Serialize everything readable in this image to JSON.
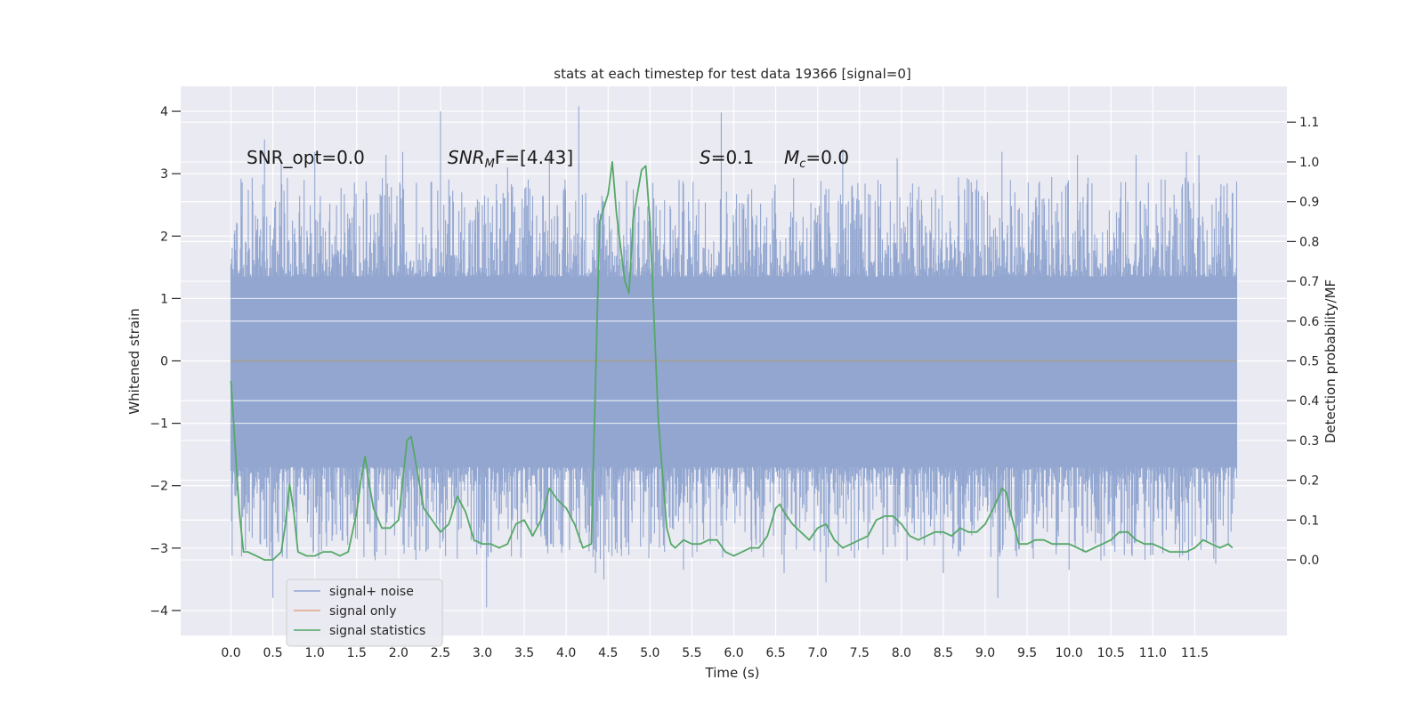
{
  "chart_data": {
    "type": "line",
    "title": "stats at each timestep for test data 19366 [signal=0]",
    "xlabel": "Time (s)",
    "ylabel_left": "Whitened strain",
    "ylabel_right": "Detection probability/MF",
    "xlim": [
      -0.6,
      12.6
    ],
    "ylim_left": [
      -4.4,
      4.4
    ],
    "ylim_right": [
      -0.19,
      1.19
    ],
    "x_ticks": [
      "0.0",
      "0.5",
      "1.0",
      "1.5",
      "2.0",
      "2.5",
      "3.0",
      "3.5",
      "4.0",
      "4.5",
      "5.0",
      "5.5",
      "6.0",
      "6.5",
      "7.0",
      "7.5",
      "8.0",
      "8.5",
      "9.0",
      "9.5",
      "10.0",
      "10.5",
      "11.0",
      "11.5"
    ],
    "y_left_ticks": [
      "4",
      "3",
      "2",
      "1",
      "0",
      "−1",
      "−2",
      "−3",
      "−4"
    ],
    "y_right_ticks": [
      "1.1",
      "1.0",
      "0.9",
      "0.8",
      "0.7",
      "0.6",
      "0.5",
      "0.4",
      "0.3",
      "0.2",
      "0.1",
      "0.0"
    ],
    "grid": true,
    "legend_position": "lower-left",
    "annotations": {
      "snr_opt": "SNR_opt=0.0",
      "snr_mf_main": "SNR",
      "snr_mf_sub": "M",
      "snr_mf_rest": "F=[4.43]",
      "s_main": "S",
      "s_rest": "=0.1",
      "mc_main": "M",
      "mc_sub": "c",
      "mc_rest": "=0.0"
    },
    "series": [
      {
        "name": "signal+ noise",
        "color": "#92a6d0",
        "axis": "left",
        "x_range": [
          0.0,
          12.0
        ],
        "band_envelope_approx": 1.35,
        "spikes": [
          {
            "x": 0.4,
            "y": 3.55
          },
          {
            "x": 0.6,
            "y": 3.2
          },
          {
            "x": 1.0,
            "y": 3.35
          },
          {
            "x": 1.85,
            "y": 3.3
          },
          {
            "x": 2.05,
            "y": 3.35
          },
          {
            "x": 2.5,
            "y": 4.0
          },
          {
            "x": 3.3,
            "y": 3.1
          },
          {
            "x": 3.8,
            "y": 3.3
          },
          {
            "x": 4.15,
            "y": 4.08
          },
          {
            "x": 5.85,
            "y": 3.98
          },
          {
            "x": 7.3,
            "y": 3.4
          },
          {
            "x": 7.95,
            "y": 3.25
          },
          {
            "x": 9.2,
            "y": 3.35
          },
          {
            "x": 10.1,
            "y": 3.3
          },
          {
            "x": 10.8,
            "y": 3.3
          },
          {
            "x": 11.4,
            "y": 3.35
          },
          {
            "x": 11.55,
            "y": 3.3
          },
          {
            "x": 0.5,
            "y": -3.8
          },
          {
            "x": 3.05,
            "y": -3.95
          },
          {
            "x": 4.35,
            "y": -3.4
          },
          {
            "x": 4.45,
            "y": -3.5
          },
          {
            "x": 5.4,
            "y": -3.35
          },
          {
            "x": 6.6,
            "y": -3.4
          },
          {
            "x": 7.1,
            "y": -3.55
          },
          {
            "x": 8.5,
            "y": -3.4
          },
          {
            "x": 9.15,
            "y": -3.8
          },
          {
            "x": 10.0,
            "y": -3.35
          },
          {
            "x": 11.75,
            "y": -3.25
          }
        ]
      },
      {
        "name": "signal only",
        "color": "#e1a485",
        "axis": "left",
        "x": [
          0.0,
          12.0
        ],
        "y": [
          0.0,
          0.0
        ]
      },
      {
        "name": "signal statistics",
        "color": "#55a868",
        "axis": "right",
        "x": [
          0.0,
          0.1,
          0.15,
          0.2,
          0.3,
          0.4,
          0.45,
          0.5,
          0.6,
          0.65,
          0.7,
          0.75,
          0.8,
          0.9,
          1.0,
          1.1,
          1.2,
          1.3,
          1.4,
          1.5,
          1.55,
          1.6,
          1.65,
          1.7,
          1.8,
          1.9,
          2.0,
          2.1,
          2.15,
          2.2,
          2.3,
          2.4,
          2.5,
          2.6,
          2.7,
          2.8,
          2.9,
          3.0,
          3.1,
          3.2,
          3.3,
          3.4,
          3.5,
          3.6,
          3.7,
          3.8,
          3.9,
          4.0,
          4.1,
          4.2,
          4.3,
          4.4,
          4.5,
          4.55,
          4.6,
          4.7,
          4.75,
          4.8,
          4.9,
          4.95,
          5.0,
          5.1,
          5.2,
          5.25,
          5.3,
          5.4,
          5.5,
          5.6,
          5.7,
          5.8,
          5.9,
          6.0,
          6.1,
          6.2,
          6.3,
          6.4,
          6.5,
          6.55,
          6.6,
          6.7,
          6.8,
          6.9,
          7.0,
          7.1,
          7.2,
          7.3,
          7.4,
          7.5,
          7.6,
          7.7,
          7.8,
          7.9,
          8.0,
          8.1,
          8.2,
          8.3,
          8.4,
          8.5,
          8.6,
          8.7,
          8.8,
          8.9,
          9.0,
          9.1,
          9.2,
          9.25,
          9.3,
          9.4,
          9.5,
          9.6,
          9.7,
          9.8,
          9.9,
          10.0,
          10.1,
          10.2,
          10.3,
          10.4,
          10.5,
          10.6,
          10.7,
          10.8,
          10.9,
          11.0,
          11.1,
          11.2,
          11.3,
          11.4,
          11.5,
          11.6,
          11.7,
          11.8,
          11.9,
          11.95
        ],
        "y": [
          0.45,
          0.12,
          0.02,
          0.02,
          0.01,
          0.0,
          0.0,
          0.0,
          0.02,
          0.09,
          0.19,
          0.12,
          0.02,
          0.01,
          0.01,
          0.02,
          0.02,
          0.01,
          0.02,
          0.12,
          0.2,
          0.26,
          0.19,
          0.13,
          0.08,
          0.08,
          0.1,
          0.3,
          0.31,
          0.25,
          0.13,
          0.1,
          0.07,
          0.09,
          0.16,
          0.12,
          0.05,
          0.04,
          0.04,
          0.03,
          0.04,
          0.09,
          0.1,
          0.06,
          0.1,
          0.18,
          0.15,
          0.13,
          0.09,
          0.03,
          0.04,
          0.85,
          0.92,
          1.0,
          0.87,
          0.7,
          0.67,
          0.86,
          0.98,
          0.99,
          0.85,
          0.35,
          0.08,
          0.04,
          0.03,
          0.05,
          0.04,
          0.04,
          0.05,
          0.05,
          0.02,
          0.01,
          0.02,
          0.03,
          0.03,
          0.06,
          0.13,
          0.14,
          0.12,
          0.09,
          0.07,
          0.05,
          0.08,
          0.09,
          0.05,
          0.03,
          0.04,
          0.05,
          0.06,
          0.1,
          0.11,
          0.11,
          0.09,
          0.06,
          0.05,
          0.06,
          0.07,
          0.07,
          0.06,
          0.08,
          0.07,
          0.07,
          0.09,
          0.13,
          0.18,
          0.17,
          0.12,
          0.04,
          0.04,
          0.05,
          0.05,
          0.04,
          0.04,
          0.04,
          0.03,
          0.02,
          0.03,
          0.04,
          0.05,
          0.07,
          0.07,
          0.05,
          0.04,
          0.04,
          0.03,
          0.02,
          0.02,
          0.02,
          0.03,
          0.05,
          0.04,
          0.03,
          0.04,
          0.03
        ]
      }
    ]
  }
}
